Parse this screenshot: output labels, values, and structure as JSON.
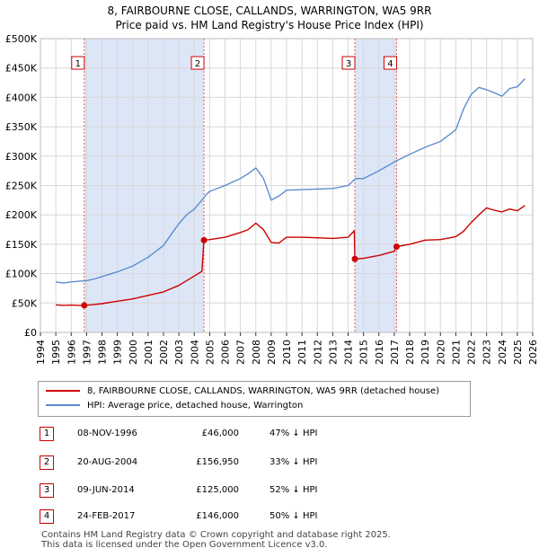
{
  "title_line1": "8, FAIRBOURNE CLOSE, CALLANDS, WARRINGTON, WA5 9RR",
  "title_line2": "Price paid vs. HM Land Registry's House Price Index (HPI)",
  "chart_data": {
    "type": "line",
    "ylim": [
      0,
      500000
    ],
    "xlim": [
      1994,
      2026
    ],
    "y_ticks": [
      0,
      50000,
      100000,
      150000,
      200000,
      250000,
      300000,
      350000,
      400000,
      450000,
      500000
    ],
    "y_tick_labels": [
      "£0",
      "£50K",
      "£100K",
      "£150K",
      "£200K",
      "£250K",
      "£300K",
      "£350K",
      "£400K",
      "£450K",
      "£500K"
    ],
    "x_ticks": [
      1994,
      1995,
      1996,
      1997,
      1998,
      1999,
      2000,
      2001,
      2002,
      2003,
      2004,
      2005,
      2006,
      2007,
      2008,
      2009,
      2010,
      2011,
      2012,
      2013,
      2014,
      2015,
      2016,
      2017,
      2018,
      2019,
      2020,
      2021,
      2022,
      2023,
      2024,
      2025,
      2026
    ],
    "x_tick_labels": [
      "1994",
      "1995",
      "1996",
      "1997",
      "1998",
      "1999",
      "2000",
      "2001",
      "2002",
      "2003",
      "2004",
      "2005",
      "2006",
      "2007",
      "2008",
      "2009",
      "2010",
      "2011",
      "2012",
      "2013",
      "2014",
      "2015",
      "2016",
      "2017",
      "2018",
      "2019",
      "2020",
      "2021",
      "2022",
      "2023",
      "2024",
      "2025",
      "2026"
    ],
    "grid": true,
    "shaded_regions": [
      [
        1996.85,
        2004.63
      ],
      [
        2014.44,
        2017.15
      ]
    ],
    "series": [
      {
        "name": "8, FAIRBOURNE CLOSE, CALLANDS, WARRINGTON, WA5 9RR (detached house)",
        "color": "#cc0000",
        "x": [
          1995.0,
          1995.5,
          1996.0,
          1996.5,
          1996.85,
          1997.5,
          1998.0,
          1999.0,
          2000.0,
          2001.0,
          2002.0,
          2003.0,
          2004.0,
          2004.5,
          2004.63,
          2005.0,
          2006.0,
          2007.0,
          2007.5,
          2008.0,
          2008.5,
          2009.0,
          2009.5,
          2010.0,
          2011.0,
          2012.0,
          2013.0,
          2014.0,
          2014.4,
          2014.44,
          2015.0,
          2016.0,
          2017.0,
          2017.15,
          2018.0,
          2019.0,
          2020.0,
          2021.0,
          2021.5,
          2022.0,
          2022.5,
          2023.0,
          2023.5,
          2024.0,
          2024.5,
          2025.0,
          2025.5
        ],
        "values": [
          47000,
          46000,
          46500,
          46000,
          46000,
          47500,
          49000,
          53000,
          57000,
          63000,
          69000,
          80000,
          96000,
          104000,
          156950,
          158000,
          162000,
          170000,
          175000,
          186000,
          175000,
          153000,
          152000,
          162000,
          162000,
          161000,
          160000,
          162000,
          173000,
          125000,
          126000,
          131000,
          138000,
          146000,
          150000,
          157000,
          158000,
          163000,
          172000,
          187000,
          200000,
          212000,
          208000,
          205000,
          210000,
          207000,
          216000
        ]
      },
      {
        "name": "HPI: Average price, detached house, Warrington",
        "color": "#5b8dd0",
        "x": [
          1995.0,
          1995.5,
          1996.0,
          1996.5,
          1997.0,
          1997.5,
          1998.0,
          1999.0,
          2000.0,
          2001.0,
          2002.0,
          2002.5,
          2003.0,
          2003.5,
          2004.0,
          2004.5,
          2004.8,
          2005.0,
          2006.0,
          2007.0,
          2007.5,
          2008.0,
          2008.5,
          2009.0,
          2009.5,
          2010.0,
          2011.0,
          2012.0,
          2013.0,
          2014.0,
          2014.5,
          2015.0,
          2016.0,
          2017.0,
          2018.0,
          2019.0,
          2020.0,
          2021.0,
          2021.5,
          2022.0,
          2022.5,
          2023.0,
          2023.5,
          2024.0,
          2024.5,
          2025.0,
          2025.5
        ],
        "values": [
          86000,
          84000,
          86000,
          87000,
          88000,
          91000,
          95000,
          103000,
          113000,
          128000,
          148000,
          167000,
          185000,
          200000,
          210000,
          225000,
          235000,
          240000,
          250000,
          262000,
          270000,
          280000,
          262000,
          225000,
          232000,
          242000,
          243000,
          244000,
          245000,
          250000,
          262000,
          262000,
          275000,
          290000,
          303000,
          315000,
          325000,
          345000,
          380000,
          405000,
          417000,
          413000,
          408000,
          402000,
          415000,
          418000,
          432000
        ]
      }
    ],
    "markers": [
      {
        "label": "1",
        "x": 1996.85,
        "y": 46000
      },
      {
        "label": "2",
        "x": 2004.63,
        "y": 156950
      },
      {
        "label": "3",
        "x": 2014.44,
        "y": 125000
      },
      {
        "label": "4",
        "x": 2017.15,
        "y": 146000
      }
    ]
  },
  "legend": [
    {
      "label": "8, FAIRBOURNE CLOSE, CALLANDS, WARRINGTON, WA5 9RR (detached house)",
      "color": "#cc0000"
    },
    {
      "label": "HPI: Average price, detached house, Warrington",
      "color": "#5b8dd0"
    }
  ],
  "transactions": [
    {
      "num": "1",
      "date": "08-NOV-1996",
      "price": "£46,000",
      "hpi": "47% ↓ HPI"
    },
    {
      "num": "2",
      "date": "20-AUG-2004",
      "price": "£156,950",
      "hpi": "33% ↓ HPI"
    },
    {
      "num": "3",
      "date": "09-JUN-2014",
      "price": "£125,000",
      "hpi": "52% ↓ HPI"
    },
    {
      "num": "4",
      "date": "24-FEB-2017",
      "price": "£146,000",
      "hpi": "50% ↓ HPI"
    }
  ],
  "footer_line1": "Contains HM Land Registry data © Crown copyright and database right 2025.",
  "footer_line2": "This data is licensed under the Open Government Licence v3.0."
}
